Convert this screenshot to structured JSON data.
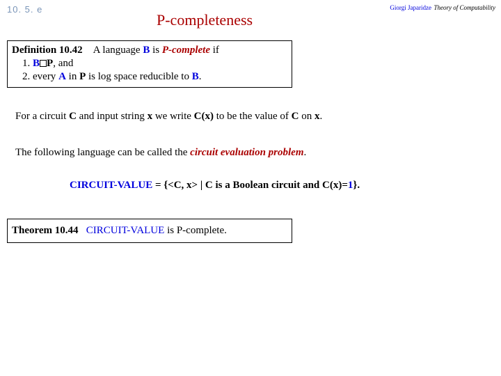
{
  "header": {
    "section": "10. 5. e",
    "author": "Giorgi Japaridze",
    "course": "Theory of Computability",
    "title": "P-completeness"
  },
  "definition": {
    "label": "Definition 10.42",
    "text_before_B": "A language ",
    "B": "B",
    "text_is": " is ",
    "Pcomplete": "P-complete",
    "text_if": " if",
    "item1_prefix": "1. ",
    "item1_B": "B",
    "item1_P": "P",
    "item1_tail": ", and",
    "item2_prefix": "2. every ",
    "item2_A": "A",
    "item2_mid": " in ",
    "item2_P": "P",
    "item2_tail1": " is log space reducible to ",
    "item2_B": "B",
    "item2_tail2": "."
  },
  "body": {
    "line1_p1": "For a circuit ",
    "line1_C": "C",
    "line1_p2": " and input string ",
    "line1_x": "x",
    "line1_p3": " we write ",
    "line1_Cx": "C(x)",
    "line1_p4": " to be the value of ",
    "line1_C2": "C",
    "line1_p5": " on ",
    "line1_x2": "x",
    "line1_p6": ".",
    "line2_p1": "The following language can be called the ",
    "line2_cep": "circuit evaluation problem",
    "line2_p2": "."
  },
  "cv": {
    "name": "CIRCUIT-VALUE",
    "eq": " = {",
    "pair": "<C, x>",
    "mid": " | ",
    "C": "C",
    "mid2": " is a Boolean circuit and ",
    "Cx": "C(x)",
    "eq1": "=",
    "one": "1",
    "tail": "}."
  },
  "theorem": {
    "label": "Theorem 10.44",
    "name": "CIRCUIT-VALUE",
    "tail": " is P-complete."
  }
}
